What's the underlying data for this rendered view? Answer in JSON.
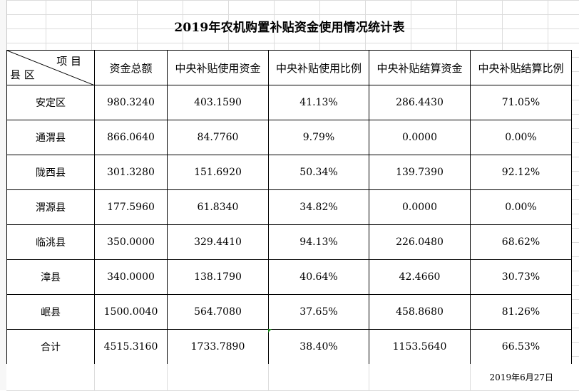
{
  "title": "2019年农机购置补贴资金使用情况统计表",
  "corner": {
    "column_label": "项 目",
    "row_label": "县 区"
  },
  "headers": [
    "资金总额",
    "中央补贴使用资金",
    "中央补贴使用比例",
    "中央补贴结算资金",
    "中央补贴结算比例"
  ],
  "rows": [
    {
      "county": "安定区",
      "total": "980.3240",
      "used": "403.1590",
      "used_ratio": "41.13%",
      "settled": "286.4430",
      "settled_ratio": "71.05%"
    },
    {
      "county": "通渭县",
      "total": "866.0640",
      "used": "84.7760",
      "used_ratio": "9.79%",
      "settled": "0.0000",
      "settled_ratio": "0.00%"
    },
    {
      "county": "陇西县",
      "total": "301.3280",
      "used": "151.6920",
      "used_ratio": "50.34%",
      "settled": "139.7390",
      "settled_ratio": "92.12%"
    },
    {
      "county": "渭源县",
      "total": "177.5960",
      "used": "61.8340",
      "used_ratio": "34.82%",
      "settled": "0.0000",
      "settled_ratio": "0.00%"
    },
    {
      "county": "临洮县",
      "total": "350.0000",
      "used": "329.4410",
      "used_ratio": "94.13%",
      "settled": "226.0480",
      "settled_ratio": "68.62%"
    },
    {
      "county": "漳县",
      "total": "340.0000",
      "used": "138.1790",
      "used_ratio": "40.64%",
      "settled": "42.4660",
      "settled_ratio": "30.73%"
    },
    {
      "county": "岷县",
      "total": "1500.0040",
      "used": "564.7080",
      "used_ratio": "37.65%",
      "settled": "458.8680",
      "settled_ratio": "81.26%"
    },
    {
      "county": "合计",
      "total": "4515.3160",
      "used": "1733.7890",
      "used_ratio": "38.40%",
      "settled": "1153.5640",
      "settled_ratio": "66.53%"
    }
  ],
  "date": "2019年6月27日",
  "colors": {
    "grid": "#dcdcdc",
    "border": "#000000",
    "comment_marker": "#1a8a1a"
  }
}
